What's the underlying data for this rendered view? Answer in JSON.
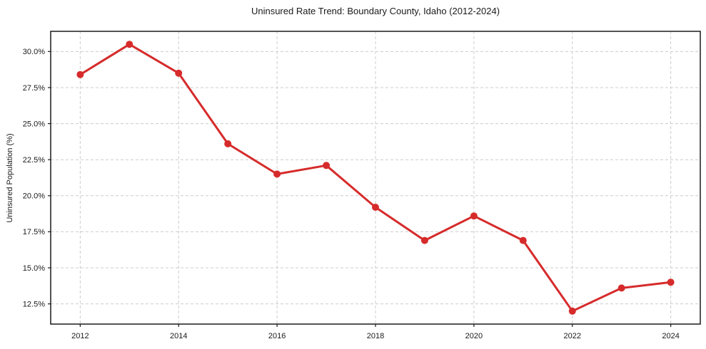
{
  "page": {
    "background_color": "#ffffff",
    "text_color": "#1a1a1a"
  },
  "chart_data": {
    "type": "line",
    "title": "Uninsured Rate Trend: Boundary County, Idaho (2012-2024)",
    "xlabel": "",
    "ylabel": "Uninsured Population (%)",
    "x": [
      2012,
      2013,
      2014,
      2015,
      2016,
      2017,
      2018,
      2019,
      2020,
      2021,
      2022,
      2023,
      2024
    ],
    "series": [
      {
        "values": [
          28.4,
          30.5,
          28.5,
          23.6,
          21.5,
          22.1,
          19.2,
          16.9,
          18.6,
          16.9,
          12.0,
          13.6,
          14.0
        ],
        "color": "#d62b2b",
        "marker": "circle",
        "marker_radius": 5,
        "line_width": 3
      }
    ],
    "xlim": [
      2011.4,
      2024.6
    ],
    "ylim": [
      11.1,
      31.4
    ],
    "x_ticks": [
      2012,
      2014,
      2016,
      2018,
      2020,
      2022,
      2024
    ],
    "x_tick_labels": [
      "2012",
      "2014",
      "2016",
      "2018",
      "2020",
      "2022",
      "2024"
    ],
    "y_ticks": [
      12.5,
      15.0,
      17.5,
      20.0,
      22.5,
      25.0,
      27.5,
      30.0
    ],
    "y_tick_labels": [
      "12.5%",
      "15.0%",
      "17.5%",
      "20.0%",
      "22.5%",
      "25.0%",
      "27.5%",
      "30.0%"
    ],
    "grid": true,
    "grid_color": "#cccccc",
    "spine_color": "#1a1a1a",
    "legend_position": "none"
  }
}
